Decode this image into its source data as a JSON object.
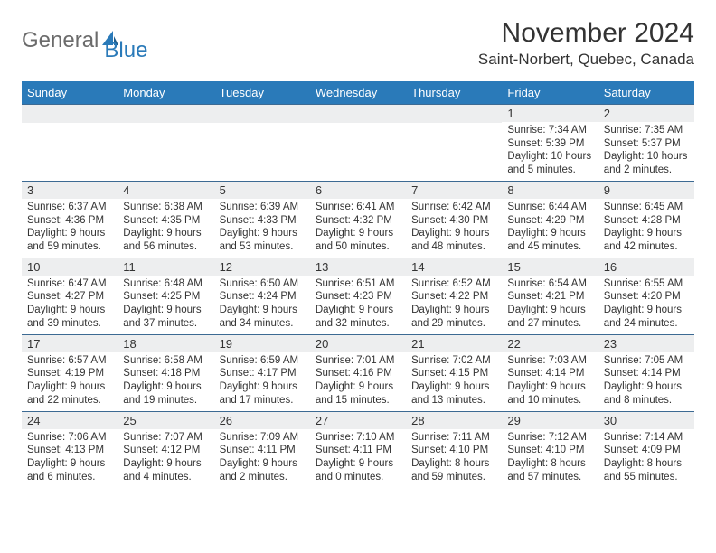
{
  "logo": {
    "text_gray": "General",
    "text_blue": "Blue"
  },
  "title": "November 2024",
  "location": "Saint-Norbert, Quebec, Canada",
  "colors": {
    "header_bg": "#2a7ab9",
    "header_text": "#ffffff",
    "band_bg": "#edeeef",
    "row_border": "#3c6a93",
    "logo_gray": "#6b6b6b",
    "logo_blue": "#2a7ab9"
  },
  "weekdays": [
    "Sunday",
    "Monday",
    "Tuesday",
    "Wednesday",
    "Thursday",
    "Friday",
    "Saturday"
  ],
  "weeks": [
    [
      null,
      null,
      null,
      null,
      null,
      {
        "n": "1",
        "sr": "Sunrise: 7:34 AM",
        "ss": "Sunset: 5:39 PM",
        "dl1": "Daylight: 10 hours",
        "dl2": "and 5 minutes."
      },
      {
        "n": "2",
        "sr": "Sunrise: 7:35 AM",
        "ss": "Sunset: 5:37 PM",
        "dl1": "Daylight: 10 hours",
        "dl2": "and 2 minutes."
      }
    ],
    [
      {
        "n": "3",
        "sr": "Sunrise: 6:37 AM",
        "ss": "Sunset: 4:36 PM",
        "dl1": "Daylight: 9 hours",
        "dl2": "and 59 minutes."
      },
      {
        "n": "4",
        "sr": "Sunrise: 6:38 AM",
        "ss": "Sunset: 4:35 PM",
        "dl1": "Daylight: 9 hours",
        "dl2": "and 56 minutes."
      },
      {
        "n": "5",
        "sr": "Sunrise: 6:39 AM",
        "ss": "Sunset: 4:33 PM",
        "dl1": "Daylight: 9 hours",
        "dl2": "and 53 minutes."
      },
      {
        "n": "6",
        "sr": "Sunrise: 6:41 AM",
        "ss": "Sunset: 4:32 PM",
        "dl1": "Daylight: 9 hours",
        "dl2": "and 50 minutes."
      },
      {
        "n": "7",
        "sr": "Sunrise: 6:42 AM",
        "ss": "Sunset: 4:30 PM",
        "dl1": "Daylight: 9 hours",
        "dl2": "and 48 minutes."
      },
      {
        "n": "8",
        "sr": "Sunrise: 6:44 AM",
        "ss": "Sunset: 4:29 PM",
        "dl1": "Daylight: 9 hours",
        "dl2": "and 45 minutes."
      },
      {
        "n": "9",
        "sr": "Sunrise: 6:45 AM",
        "ss": "Sunset: 4:28 PM",
        "dl1": "Daylight: 9 hours",
        "dl2": "and 42 minutes."
      }
    ],
    [
      {
        "n": "10",
        "sr": "Sunrise: 6:47 AM",
        "ss": "Sunset: 4:27 PM",
        "dl1": "Daylight: 9 hours",
        "dl2": "and 39 minutes."
      },
      {
        "n": "11",
        "sr": "Sunrise: 6:48 AM",
        "ss": "Sunset: 4:25 PM",
        "dl1": "Daylight: 9 hours",
        "dl2": "and 37 minutes."
      },
      {
        "n": "12",
        "sr": "Sunrise: 6:50 AM",
        "ss": "Sunset: 4:24 PM",
        "dl1": "Daylight: 9 hours",
        "dl2": "and 34 minutes."
      },
      {
        "n": "13",
        "sr": "Sunrise: 6:51 AM",
        "ss": "Sunset: 4:23 PM",
        "dl1": "Daylight: 9 hours",
        "dl2": "and 32 minutes."
      },
      {
        "n": "14",
        "sr": "Sunrise: 6:52 AM",
        "ss": "Sunset: 4:22 PM",
        "dl1": "Daylight: 9 hours",
        "dl2": "and 29 minutes."
      },
      {
        "n": "15",
        "sr": "Sunrise: 6:54 AM",
        "ss": "Sunset: 4:21 PM",
        "dl1": "Daylight: 9 hours",
        "dl2": "and 27 minutes."
      },
      {
        "n": "16",
        "sr": "Sunrise: 6:55 AM",
        "ss": "Sunset: 4:20 PM",
        "dl1": "Daylight: 9 hours",
        "dl2": "and 24 minutes."
      }
    ],
    [
      {
        "n": "17",
        "sr": "Sunrise: 6:57 AM",
        "ss": "Sunset: 4:19 PM",
        "dl1": "Daylight: 9 hours",
        "dl2": "and 22 minutes."
      },
      {
        "n": "18",
        "sr": "Sunrise: 6:58 AM",
        "ss": "Sunset: 4:18 PM",
        "dl1": "Daylight: 9 hours",
        "dl2": "and 19 minutes."
      },
      {
        "n": "19",
        "sr": "Sunrise: 6:59 AM",
        "ss": "Sunset: 4:17 PM",
        "dl1": "Daylight: 9 hours",
        "dl2": "and 17 minutes."
      },
      {
        "n": "20",
        "sr": "Sunrise: 7:01 AM",
        "ss": "Sunset: 4:16 PM",
        "dl1": "Daylight: 9 hours",
        "dl2": "and 15 minutes."
      },
      {
        "n": "21",
        "sr": "Sunrise: 7:02 AM",
        "ss": "Sunset: 4:15 PM",
        "dl1": "Daylight: 9 hours",
        "dl2": "and 13 minutes."
      },
      {
        "n": "22",
        "sr": "Sunrise: 7:03 AM",
        "ss": "Sunset: 4:14 PM",
        "dl1": "Daylight: 9 hours",
        "dl2": "and 10 minutes."
      },
      {
        "n": "23",
        "sr": "Sunrise: 7:05 AM",
        "ss": "Sunset: 4:14 PM",
        "dl1": "Daylight: 9 hours",
        "dl2": "and 8 minutes."
      }
    ],
    [
      {
        "n": "24",
        "sr": "Sunrise: 7:06 AM",
        "ss": "Sunset: 4:13 PM",
        "dl1": "Daylight: 9 hours",
        "dl2": "and 6 minutes."
      },
      {
        "n": "25",
        "sr": "Sunrise: 7:07 AM",
        "ss": "Sunset: 4:12 PM",
        "dl1": "Daylight: 9 hours",
        "dl2": "and 4 minutes."
      },
      {
        "n": "26",
        "sr": "Sunrise: 7:09 AM",
        "ss": "Sunset: 4:11 PM",
        "dl1": "Daylight: 9 hours",
        "dl2": "and 2 minutes."
      },
      {
        "n": "27",
        "sr": "Sunrise: 7:10 AM",
        "ss": "Sunset: 4:11 PM",
        "dl1": "Daylight: 9 hours",
        "dl2": "and 0 minutes."
      },
      {
        "n": "28",
        "sr": "Sunrise: 7:11 AM",
        "ss": "Sunset: 4:10 PM",
        "dl1": "Daylight: 8 hours",
        "dl2": "and 59 minutes."
      },
      {
        "n": "29",
        "sr": "Sunrise: 7:12 AM",
        "ss": "Sunset: 4:10 PM",
        "dl1": "Daylight: 8 hours",
        "dl2": "and 57 minutes."
      },
      {
        "n": "30",
        "sr": "Sunrise: 7:14 AM",
        "ss": "Sunset: 4:09 PM",
        "dl1": "Daylight: 8 hours",
        "dl2": "and 55 minutes."
      }
    ]
  ]
}
